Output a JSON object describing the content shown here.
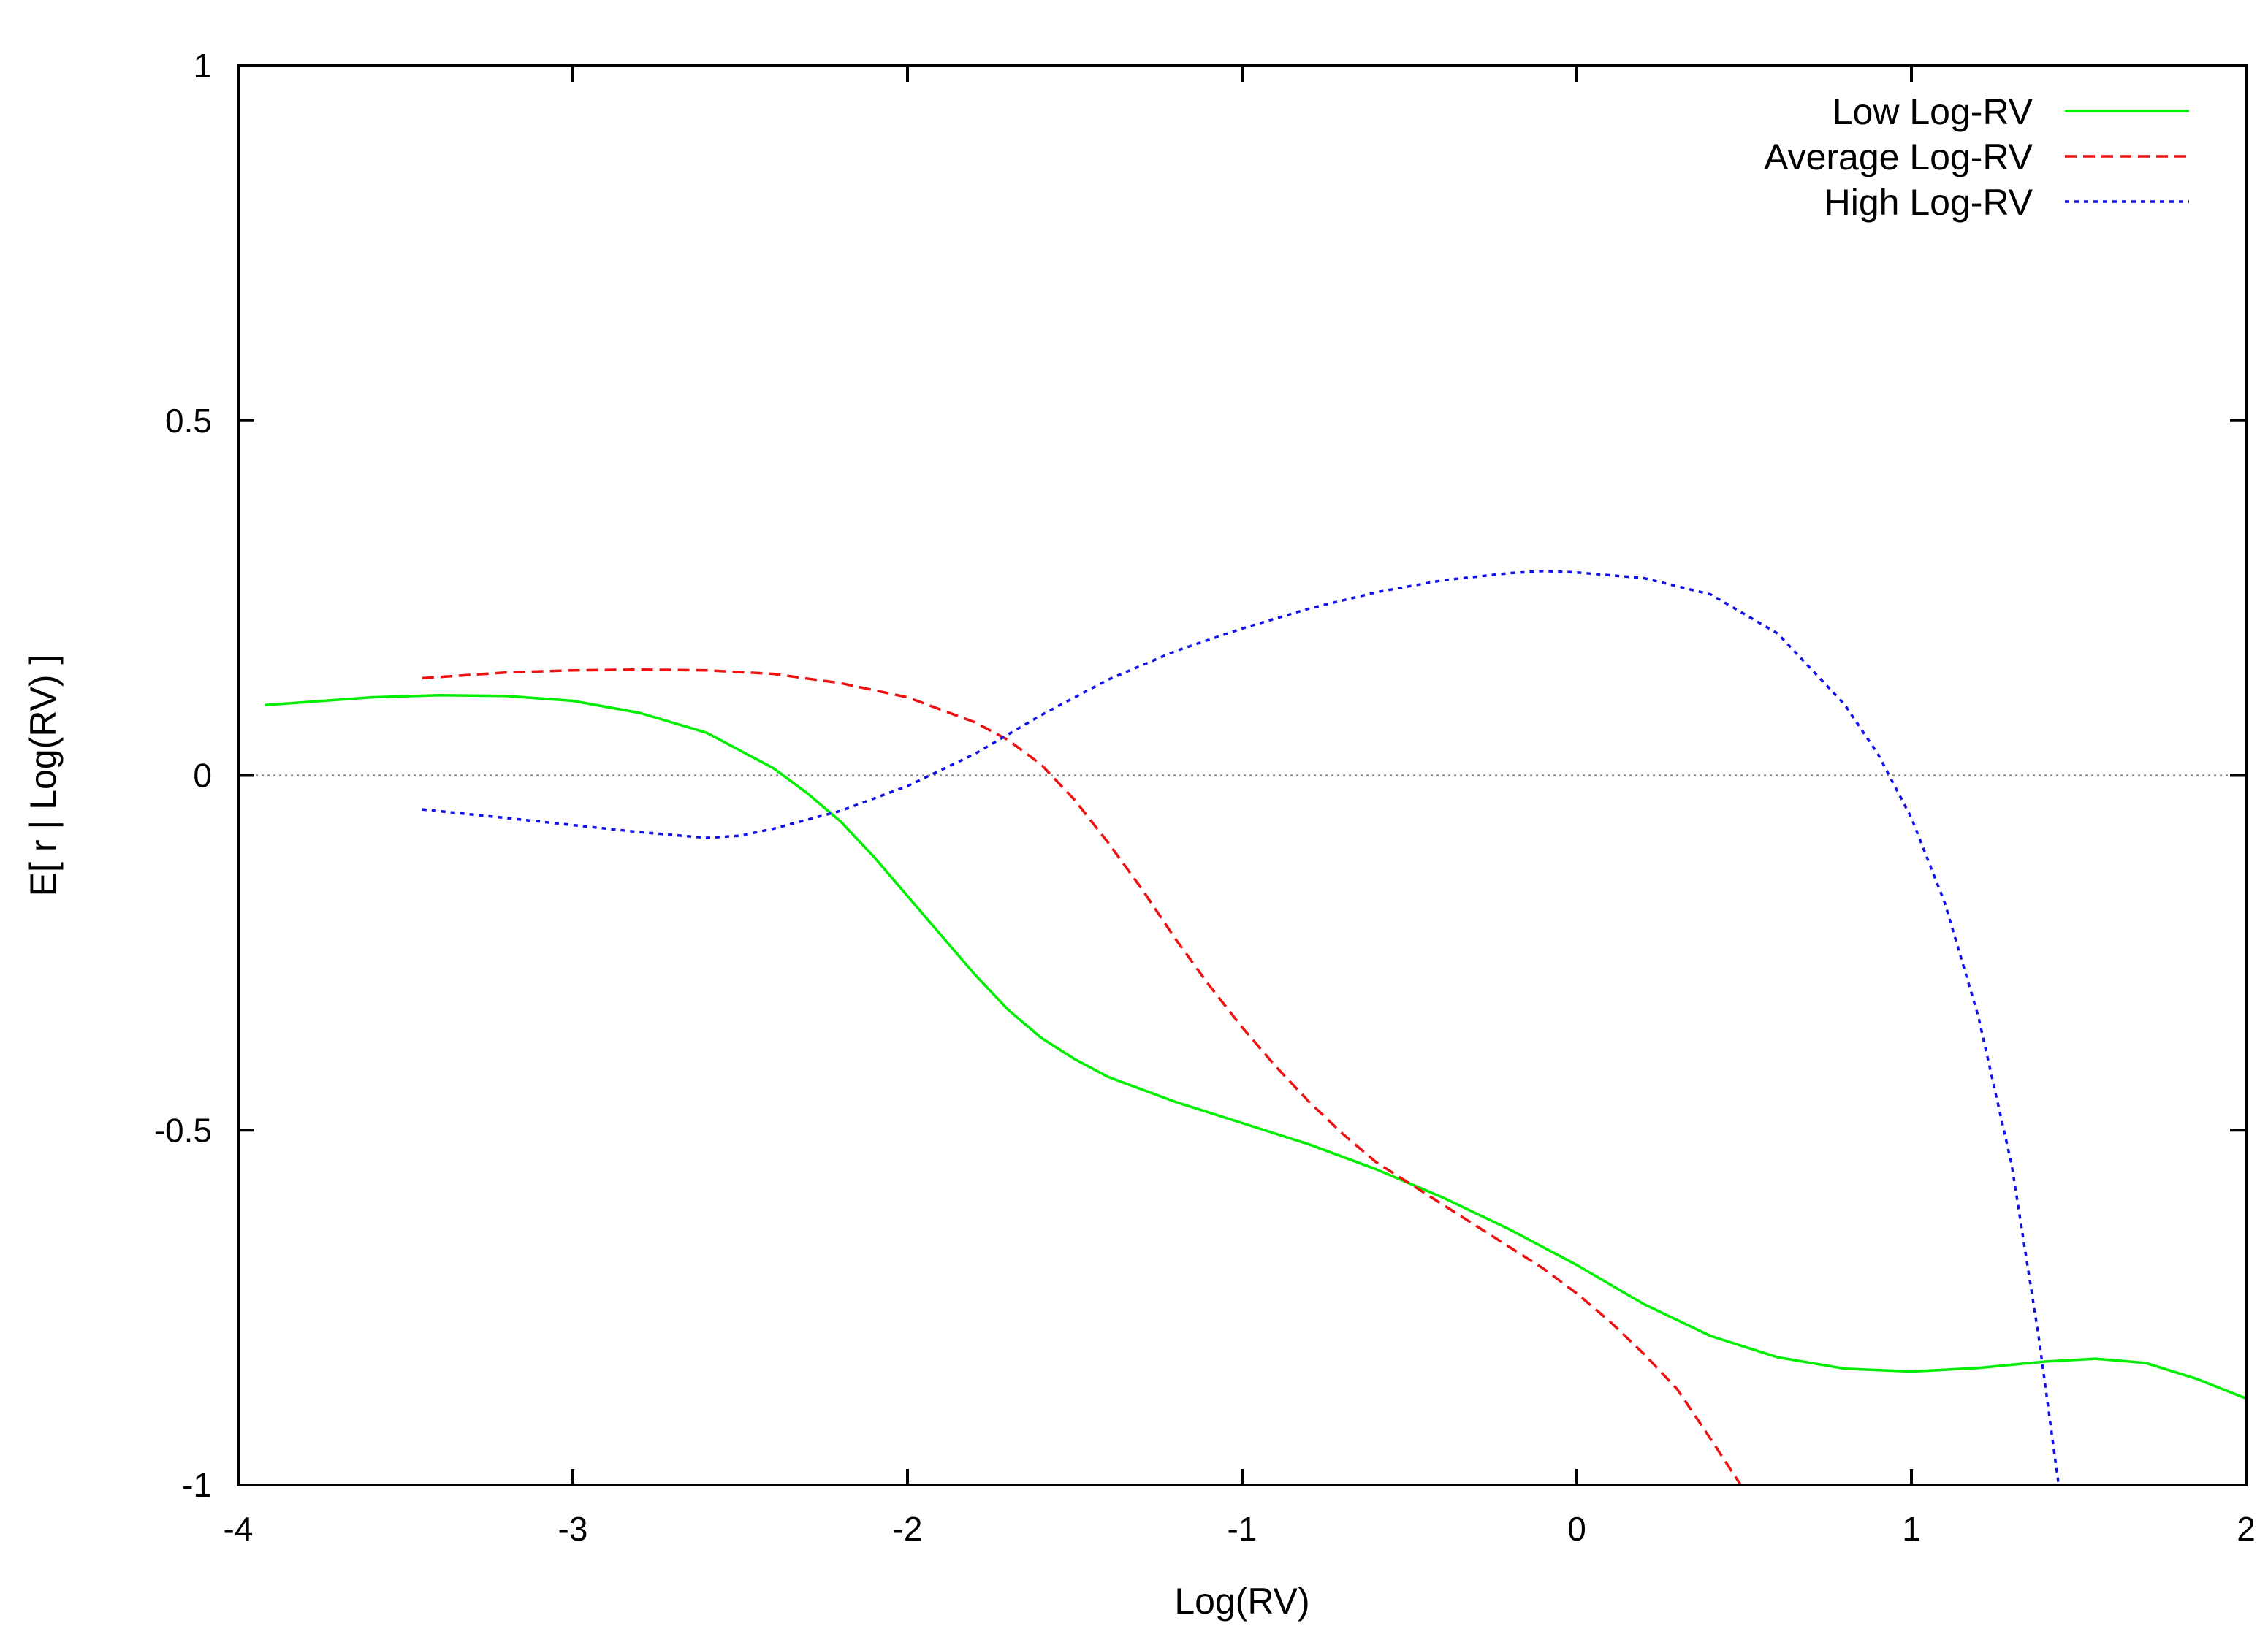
{
  "chart_data": {
    "type": "line",
    "title": "",
    "xlabel": "Log(RV)",
    "ylabel": "E[ r | Log(RV) ]",
    "xlim": [
      -4,
      2
    ],
    "ylim": [
      -1,
      1
    ],
    "x_ticks": [
      -4,
      -3,
      -2,
      -1,
      0,
      1,
      2
    ],
    "x_tick_labels": [
      "-4",
      "-3",
      "-2",
      "-1",
      "0",
      "1",
      "2"
    ],
    "y_ticks": [
      -1,
      -0.5,
      0,
      0.5,
      1
    ],
    "y_tick_labels": [
      "-1",
      "-0.5",
      "0",
      "0.5",
      "1"
    ],
    "grid": false,
    "reference_line": {
      "y": 0,
      "color": "#a0a0a0",
      "style": "dotted"
    },
    "legend": {
      "position": "top-right"
    },
    "series": [
      {
        "name": "Low Log-RV",
        "color": "#00ee00",
        "dash": "solid",
        "points": [
          [
            -3.92,
            0.099
          ],
          [
            -3.6,
            0.11
          ],
          [
            -3.4,
            0.113
          ],
          [
            -3.2,
            0.112
          ],
          [
            -3.0,
            0.105
          ],
          [
            -2.8,
            0.088
          ],
          [
            -2.6,
            0.06
          ],
          [
            -2.5,
            0.035
          ],
          [
            -2.4,
            0.01
          ],
          [
            -2.3,
            -0.025
          ],
          [
            -2.2,
            -0.065
          ],
          [
            -2.1,
            -0.115
          ],
          [
            -2.0,
            -0.17
          ],
          [
            -1.9,
            -0.225
          ],
          [
            -1.8,
            -0.28
          ],
          [
            -1.7,
            -0.33
          ],
          [
            -1.6,
            -0.37
          ],
          [
            -1.5,
            -0.4
          ],
          [
            -1.4,
            -0.425
          ],
          [
            -1.2,
            -0.46
          ],
          [
            -1.0,
            -0.49
          ],
          [
            -0.8,
            -0.52
          ],
          [
            -0.6,
            -0.555
          ],
          [
            -0.4,
            -0.595
          ],
          [
            -0.2,
            -0.64
          ],
          [
            0.0,
            -0.69
          ],
          [
            0.2,
            -0.745
          ],
          [
            0.4,
            -0.79
          ],
          [
            0.6,
            -0.82
          ],
          [
            0.8,
            -0.836
          ],
          [
            1.0,
            -0.84
          ],
          [
            1.2,
            -0.835
          ],
          [
            1.4,
            -0.826
          ],
          [
            1.55,
            -0.822
          ],
          [
            1.7,
            -0.828
          ],
          [
            1.85,
            -0.85
          ],
          [
            2.0,
            -0.878
          ]
        ]
      },
      {
        "name": "Average Log-RV",
        "color": "#ee1111",
        "dash": "16,9",
        "points": [
          [
            -3.45,
            0.137
          ],
          [
            -3.2,
            0.145
          ],
          [
            -3.0,
            0.148
          ],
          [
            -2.8,
            0.149
          ],
          [
            -2.6,
            0.148
          ],
          [
            -2.4,
            0.143
          ],
          [
            -2.2,
            0.13
          ],
          [
            -2.0,
            0.11
          ],
          [
            -1.8,
            0.075
          ],
          [
            -1.7,
            0.05
          ],
          [
            -1.6,
            0.015
          ],
          [
            -1.5,
            -0.035
          ],
          [
            -1.4,
            -0.095
          ],
          [
            -1.3,
            -0.16
          ],
          [
            -1.2,
            -0.23
          ],
          [
            -1.1,
            -0.295
          ],
          [
            -1.0,
            -0.355
          ],
          [
            -0.9,
            -0.41
          ],
          [
            -0.8,
            -0.46
          ],
          [
            -0.7,
            -0.505
          ],
          [
            -0.6,
            -0.545
          ],
          [
            -0.5,
            -0.575
          ],
          [
            -0.4,
            -0.605
          ],
          [
            -0.3,
            -0.635
          ],
          [
            -0.2,
            -0.665
          ],
          [
            -0.1,
            -0.695
          ],
          [
            0.0,
            -0.73
          ],
          [
            0.1,
            -0.77
          ],
          [
            0.2,
            -0.815
          ],
          [
            0.3,
            -0.865
          ],
          [
            0.4,
            -0.935
          ],
          [
            0.49,
            -1.0
          ]
        ]
      },
      {
        "name": "High Log-RV",
        "color": "#1111ee",
        "dash": "6,7",
        "points": [
          [
            -3.45,
            -0.048
          ],
          [
            -3.2,
            -0.06
          ],
          [
            -3.0,
            -0.07
          ],
          [
            -2.8,
            -0.08
          ],
          [
            -2.6,
            -0.088
          ],
          [
            -2.5,
            -0.085
          ],
          [
            -2.4,
            -0.075
          ],
          [
            -2.2,
            -0.05
          ],
          [
            -2.0,
            -0.015
          ],
          [
            -1.8,
            0.03
          ],
          [
            -1.6,
            0.085
          ],
          [
            -1.4,
            0.135
          ],
          [
            -1.2,
            0.175
          ],
          [
            -1.0,
            0.207
          ],
          [
            -0.8,
            0.235
          ],
          [
            -0.6,
            0.258
          ],
          [
            -0.4,
            0.275
          ],
          [
            -0.2,
            0.285
          ],
          [
            -0.1,
            0.288
          ],
          [
            0.0,
            0.286
          ],
          [
            0.2,
            0.278
          ],
          [
            0.4,
            0.255
          ],
          [
            0.6,
            0.2
          ],
          [
            0.8,
            0.1
          ],
          [
            0.9,
            0.03
          ],
          [
            1.0,
            -0.06
          ],
          [
            1.1,
            -0.18
          ],
          [
            1.2,
            -0.34
          ],
          [
            1.3,
            -0.55
          ],
          [
            1.38,
            -0.79
          ],
          [
            1.44,
            -1.0
          ]
        ]
      }
    ]
  }
}
